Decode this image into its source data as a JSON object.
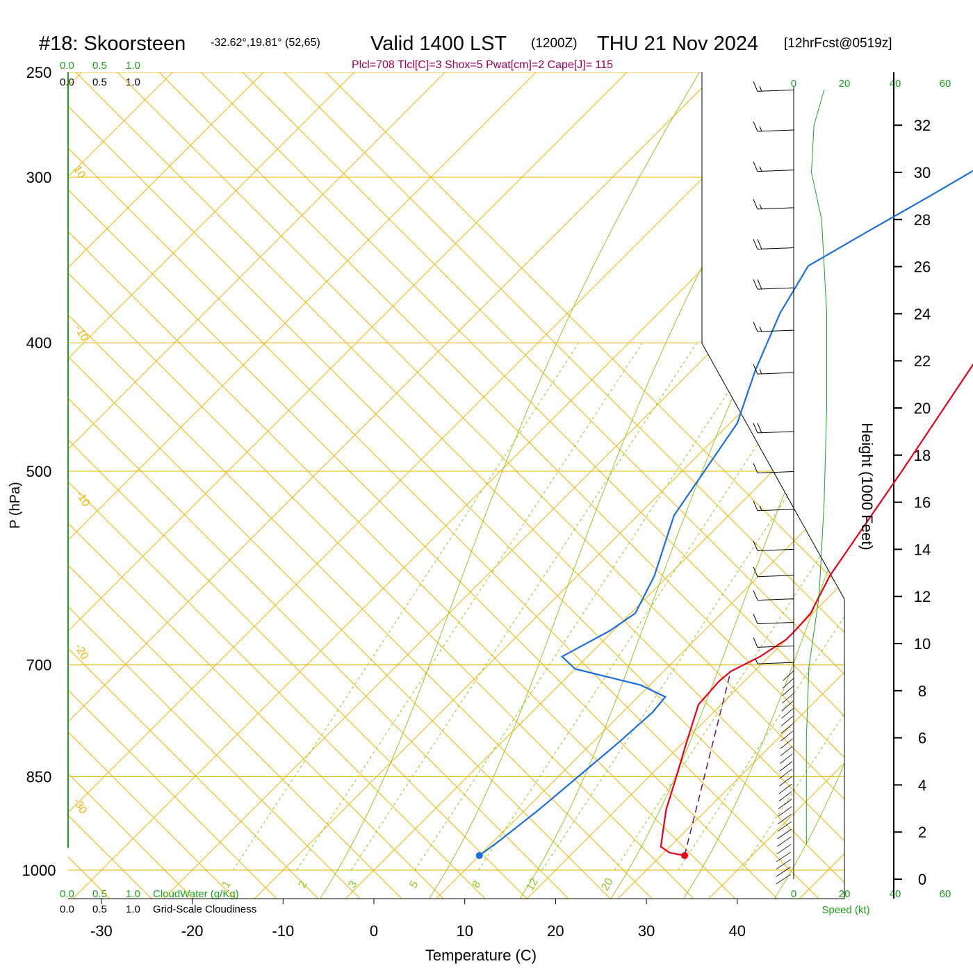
{
  "header": {
    "station": "#18: Skoorsteen",
    "coords": "-32.62°,19.81° (52,65)",
    "valid": "Valid 1400 LST",
    "zulu": "(1200Z)",
    "date": "THU 21 Nov 2024",
    "forecast": "[12hrFcst@0519z]"
  },
  "indices": "Plcl=708 Tlcl[C]=3 Shox=5 Pwat[cm]=2 Cape[J]= 115",
  "colors": {
    "temperature": "#e8001a",
    "dewpoint": "#1a6fe0",
    "parcel": "#6a0f6a",
    "isotherm": "#f0b400",
    "mixing_ratio": "#90c820",
    "green_axis": "#1aa31a",
    "indices_text": "#a0005a",
    "barb": "#000000"
  },
  "scales": {
    "top_left_green": [
      "0.0",
      "0.5",
      "1.0"
    ],
    "top_left_black": [
      "0.0",
      "0.5",
      "1.0"
    ],
    "bottom_left_green": [
      "0.0",
      "0.5",
      "1.0"
    ],
    "bottom_left_black": [
      "0.0",
      "0.5",
      "1.0"
    ],
    "cloudwater_label": "CloudWater (g/Kg)",
    "cloudiness_label": "Grid-Scale Cloudiness",
    "speed_ticks": [
      "0",
      "20",
      "40",
      "60"
    ],
    "speed_label": "Speed (kt)"
  },
  "chart_data": {
    "type": "skew-t",
    "xlabel": "Temperature (C)",
    "ylabel": "P (hPa)",
    "y2label": "Height (1000 Feet)",
    "x_ticks": [
      -30,
      -20,
      -10,
      0,
      10,
      20,
      30,
      40
    ],
    "p_ticks": [
      250,
      300,
      400,
      500,
      700,
      850,
      1000
    ],
    "height_ticks": [
      0,
      2,
      4,
      6,
      8,
      10,
      12,
      14,
      16,
      18,
      20,
      22,
      24,
      26,
      28,
      30,
      32
    ],
    "isotherm_labels": [
      "10",
      "0",
      "-10",
      "-20",
      "-30",
      "0",
      "10",
      "20",
      "30"
    ],
    "mixing_ratio_labels": [
      "1",
      "2",
      "3",
      "5",
      "8",
      "12",
      "20"
    ],
    "temperature_profile": [
      {
        "p": 975,
        "t": 32.6
      },
      {
        "p": 970,
        "t": 30.6
      },
      {
        "p": 960,
        "t": 29.0
      },
      {
        "p": 900,
        "t": 25.5
      },
      {
        "p": 850,
        "t": 23.0
      },
      {
        "p": 800,
        "t": 20.3
      },
      {
        "p": 750,
        "t": 17.5
      },
      {
        "p": 720,
        "t": 17.2
      },
      {
        "p": 708,
        "t": 17.4
      },
      {
        "p": 690,
        "t": 19.0
      },
      {
        "p": 670,
        "t": 20.0
      },
      {
        "p": 660,
        "t": 20.0
      },
      {
        "p": 640,
        "t": 19.8
      },
      {
        "p": 600,
        "t": 17.8
      },
      {
        "p": 500,
        "t": 14.2
      },
      {
        "p": 400,
        "t": 9.5
      },
      {
        "p": 350,
        "t": 6.5
      },
      {
        "p": 300,
        "t": 3.0
      },
      {
        "p": 275,
        "t": 0.5
      },
      {
        "p": 255,
        "t": -2.0
      }
    ],
    "dewpoint_profile": [
      {
        "p": 975,
        "t": 10.0
      },
      {
        "p": 950,
        "t": 10.6
      },
      {
        "p": 900,
        "t": 11.5
      },
      {
        "p": 850,
        "t": 12.2
      },
      {
        "p": 800,
        "t": 12.9
      },
      {
        "p": 760,
        "t": 13.3
      },
      {
        "p": 740,
        "t": 13.0
      },
      {
        "p": 725,
        "t": 9.0
      },
      {
        "p": 705,
        "t": 0.0
      },
      {
        "p": 690,
        "t": -2.8
      },
      {
        "p": 660,
        "t": -0.4
      },
      {
        "p": 640,
        "t": 0.5
      },
      {
        "p": 600,
        "t": -1.5
      },
      {
        "p": 540,
        "t": -6.0
      },
      {
        "p": 460,
        "t": -9.2
      },
      {
        "p": 420,
        "t": -13.0
      },
      {
        "p": 380,
        "t": -16.6
      },
      {
        "p": 350,
        "t": -18.7
      },
      {
        "p": 330,
        "t": -16.0
      },
      {
        "p": 310,
        "t": -13.0
      },
      {
        "p": 290,
        "t": -10.0
      },
      {
        "p": 270,
        "t": -8.1
      },
      {
        "p": 254,
        "t": -8.5
      }
    ],
    "parcel_profile": [
      {
        "p": 975,
        "t": 32.6
      },
      {
        "p": 708,
        "t": 17.4
      }
    ],
    "surface_temp": {
      "p": 975,
      "t": 32.6
    },
    "surface_dewpoint": {
      "p": 975,
      "t": 10.0
    },
    "wind_speed_profile": [
      {
        "h": 1.5,
        "spd": 5
      },
      {
        "h": 6,
        "spd": 5
      },
      {
        "h": 9,
        "spd": 6
      },
      {
        "h": 12,
        "spd": 10
      },
      {
        "h": 16,
        "spd": 12
      },
      {
        "h": 20,
        "spd": 13
      },
      {
        "h": 24,
        "spd": 13
      },
      {
        "h": 28,
        "spd": 11
      },
      {
        "h": 30,
        "spd": 7
      },
      {
        "h": 32,
        "spd": 8
      },
      {
        "h": 33.5,
        "spd": 12
      }
    ],
    "wind_barbs": [
      {
        "h": 33.5,
        "full": 1,
        "half": 1
      },
      {
        "h": 31.8,
        "full": 1,
        "half": 1
      },
      {
        "h": 30.1,
        "full": 1,
        "half": 1
      },
      {
        "h": 28.5,
        "full": 1,
        "half": 1
      },
      {
        "h": 26.8,
        "full": 2,
        "half": 0
      },
      {
        "h": 25.1,
        "full": 2,
        "half": 0
      },
      {
        "h": 23.3,
        "full": 1,
        "half": 1
      },
      {
        "h": 21.5,
        "full": 1,
        "half": 1
      },
      {
        "h": 19.0,
        "full": 2,
        "half": 0
      },
      {
        "h": 17.3,
        "full": 1,
        "half": 0
      },
      {
        "h": 15.7,
        "full": 1,
        "half": 1
      },
      {
        "h": 14.0,
        "full": 1,
        "half": 0
      },
      {
        "h": 12.9,
        "full": 1,
        "half": 0
      },
      {
        "h": 11.9,
        "full": 1,
        "half": 0
      },
      {
        "h": 10.9,
        "full": 1,
        "half": 0
      },
      {
        "h": 9.9,
        "full": 1,
        "half": 0
      },
      {
        "h": 9.2,
        "full": 0,
        "half": 1
      }
    ]
  }
}
